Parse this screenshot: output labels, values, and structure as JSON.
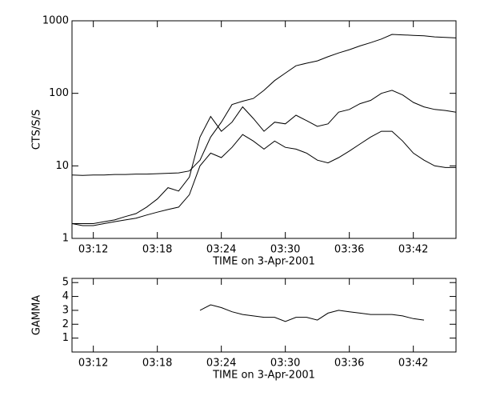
{
  "chart_data": [
    {
      "type": "line",
      "xlabel": "TIME on 3-Apr-2001",
      "ylabel": "CTS/S/S",
      "log_y": true,
      "xlim": [
        "03:10",
        "03:46"
      ],
      "xticks": [
        "03:12",
        "03:18",
        "03:24",
        "03:30",
        "03:36",
        "03:42"
      ],
      "ylim": [
        1,
        1000
      ],
      "yticks": [
        1,
        10,
        100,
        1000
      ],
      "x": [
        "03:10",
        "03:11",
        "03:12",
        "03:13",
        "03:14",
        "03:15",
        "03:16",
        "03:17",
        "03:18",
        "03:19",
        "03:20",
        "03:21",
        "03:22",
        "03:23",
        "03:24",
        "03:25",
        "03:26",
        "03:27",
        "03:28",
        "03:29",
        "03:30",
        "03:31",
        "03:32",
        "03:33",
        "03:34",
        "03:35",
        "03:36",
        "03:37",
        "03:38",
        "03:39",
        "03:40",
        "03:41",
        "03:42",
        "03:43",
        "03:44",
        "03:45",
        "03:46"
      ],
      "series": [
        {
          "color": "#000000",
          "values": [
            7.5,
            7.4,
            7.5,
            7.5,
            7.6,
            7.6,
            7.7,
            7.7,
            7.8,
            7.9,
            8,
            8.5,
            12,
            25,
            40,
            70,
            78,
            85,
            110,
            150,
            190,
            240,
            260,
            280,
            320,
            360,
            400,
            450,
            500,
            560,
            650,
            640,
            630,
            620,
            600,
            590,
            580
          ]
        },
        {
          "color": "#000000",
          "values": [
            1.6,
            1.6,
            1.6,
            1.7,
            1.8,
            2,
            2.2,
            2.7,
            3.5,
            5,
            4.5,
            7,
            25,
            48,
            30,
            40,
            65,
            45,
            30,
            40,
            38,
            50,
            42,
            35,
            38,
            55,
            60,
            72,
            80,
            100,
            110,
            95,
            75,
            65,
            60,
            58,
            55
          ]
        },
        {
          "color": "#000000",
          "values": [
            1.6,
            1.5,
            1.5,
            1.6,
            1.7,
            1.8,
            1.9,
            2.1,
            2.3,
            2.5,
            2.7,
            4,
            10,
            15,
            13,
            18,
            27,
            22,
            17,
            22,
            18,
            17,
            15,
            12,
            11,
            13,
            16,
            20,
            25,
            30,
            30,
            22,
            15,
            12,
            10,
            9.5,
            9.5
          ]
        }
      ]
    },
    {
      "type": "line",
      "xlabel": "TIME on 3-Apr-2001",
      "ylabel": "GAMMA",
      "log_y": false,
      "xlim": [
        "03:10",
        "03:46"
      ],
      "xticks": [
        "03:12",
        "03:18",
        "03:24",
        "03:30",
        "03:36",
        "03:42"
      ],
      "ylim": [
        0,
        5.3
      ],
      "yticks": [
        1,
        2,
        3,
        4,
        5
      ],
      "x": [
        "03:22",
        "03:23",
        "03:24",
        "03:25",
        "03:26",
        "03:27",
        "03:28",
        "03:29",
        "03:30",
        "03:31",
        "03:32",
        "03:33",
        "03:34",
        "03:35",
        "03:36",
        "03:37",
        "03:38",
        "03:39",
        "03:40",
        "03:41",
        "03:42",
        "03:43"
      ],
      "series": [
        {
          "color": "#000000",
          "values": [
            3.0,
            3.4,
            3.2,
            2.9,
            2.7,
            2.6,
            2.5,
            2.5,
            2.2,
            2.5,
            2.5,
            2.3,
            2.8,
            3.0,
            2.9,
            2.8,
            2.7,
            2.7,
            2.7,
            2.6,
            2.4,
            2.3
          ]
        }
      ]
    }
  ]
}
